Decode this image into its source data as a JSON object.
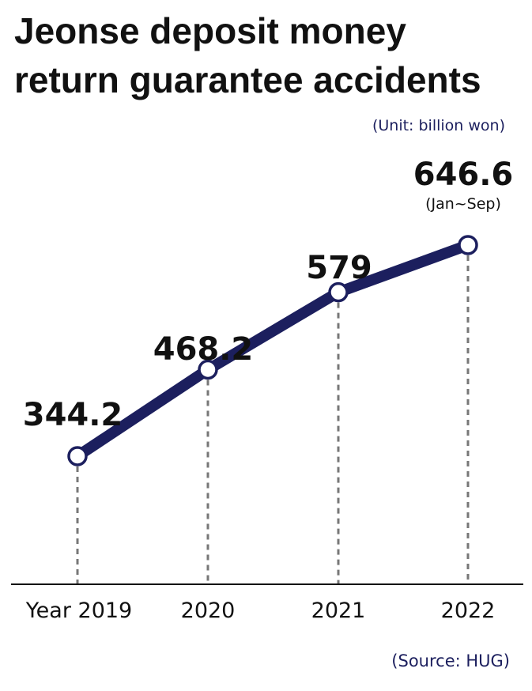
{
  "title_line1": "Jeonse deposit money",
  "title_line2": "return guarantee accidents",
  "unit": "(Unit: billion won)",
  "source": "(Source: HUG)",
  "colors": {
    "line": "#1c1f5e",
    "dash": "#777777",
    "axis": "#111111",
    "text": "#111111"
  },
  "chart_data": {
    "type": "line",
    "categories": [
      "Year 2019",
      "2020",
      "2021",
      "2022"
    ],
    "values": [
      344.2,
      468.2,
      579,
      646.6
    ],
    "value_labels": [
      "344.2",
      "468.2",
      "579",
      "646.6"
    ],
    "annotations": [
      "",
      "",
      "",
      "(Jan~Sep)"
    ],
    "title": "Jeonse deposit money return guarantee accidents",
    "ylabel": "(Unit: billion won)",
    "xlabel": "",
    "grid": false,
    "legend": "none"
  }
}
